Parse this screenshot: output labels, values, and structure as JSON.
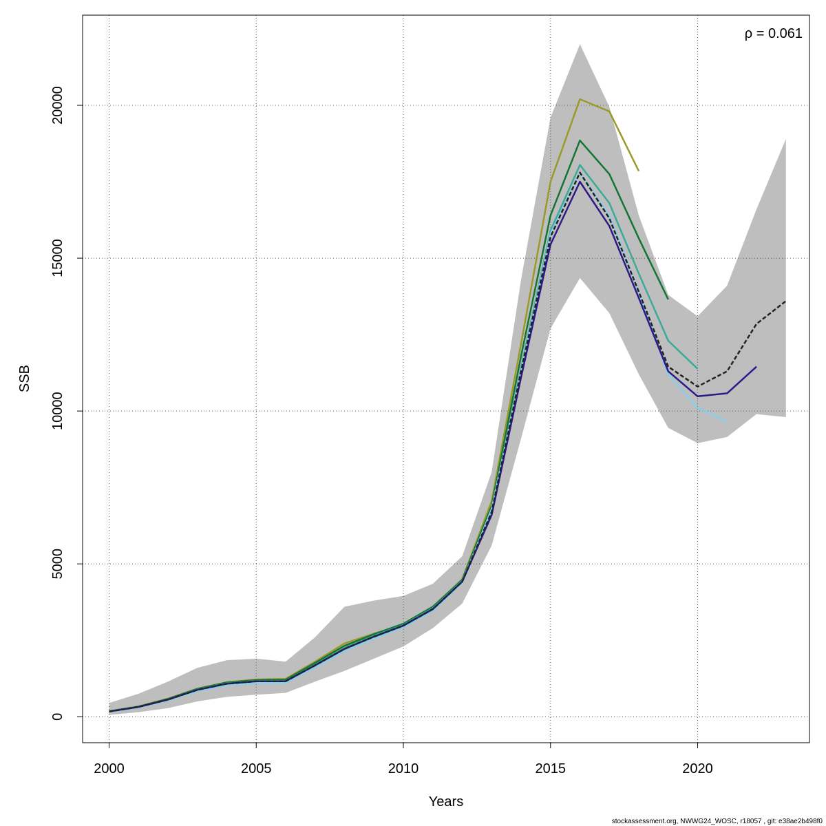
{
  "chart_data": {
    "type": "line",
    "xlabel": "Years",
    "ylabel": "SSB",
    "xlim": [
      1999.1,
      2023.8
    ],
    "ylim": [
      -850,
      22950
    ],
    "x_ticks": [
      2000,
      2005,
      2010,
      2015,
      2020
    ],
    "y_ticks": [
      0,
      5000,
      10000,
      15000,
      20000
    ],
    "grid": true,
    "annotation": "ρ = 0.061",
    "confidence_band": {
      "color": "#bebebe",
      "x": [
        2000,
        2001,
        2002,
        2003,
        2004,
        2005,
        2006,
        2007,
        2008,
        2009,
        2010,
        2011,
        2012,
        2013,
        2014,
        2015,
        2016,
        2017,
        2018,
        2019,
        2020,
        2021,
        2022,
        2023
      ],
      "lower": [
        60,
        150,
        280,
        500,
        650,
        720,
        780,
        1150,
        1500,
        1900,
        2300,
        2900,
        3700,
        5600,
        9100,
        12700,
        14350,
        13200,
        11200,
        9450,
        8950,
        9150,
        9900,
        9800
      ],
      "upper": [
        450,
        750,
        1150,
        1600,
        1850,
        1900,
        1800,
        2600,
        3600,
        3800,
        3950,
        4350,
        5250,
        8000,
        14300,
        19600,
        22000,
        19950,
        16400,
        13800,
        13100,
        14100,
        16600,
        18900
      ]
    },
    "series": [
      {
        "color": "#222222",
        "dashed": true,
        "x": [
          2000,
          2001,
          2002,
          2003,
          2004,
          2005,
          2006,
          2007,
          2008,
          2009,
          2010,
          2011,
          2012,
          2013,
          2014,
          2015,
          2016,
          2017,
          2018,
          2019,
          2020,
          2021,
          2022,
          2023
        ],
        "values": [
          170,
          320,
          560,
          880,
          1080,
          1160,
          1160,
          1680,
          2220,
          2620,
          2980,
          3520,
          4420,
          6700,
          11300,
          15700,
          17800,
          16300,
          13900,
          11450,
          10800,
          11300,
          12850,
          13600
        ]
      },
      {
        "color": "#2b1a88",
        "x": [
          2000,
          2001,
          2002,
          2003,
          2004,
          2005,
          2006,
          2007,
          2008,
          2009,
          2010,
          2011,
          2012,
          2013,
          2014,
          2015,
          2016,
          2017,
          2018,
          2019,
          2020,
          2021,
          2022
        ],
        "values": [
          170,
          320,
          560,
          880,
          1080,
          1160,
          1160,
          1680,
          2220,
          2620,
          2980,
          3520,
          4420,
          6600,
          11100,
          15450,
          17500,
          16050,
          13700,
          11300,
          10480,
          10580,
          11450
        ]
      },
      {
        "color": "#87ceeb",
        "x": [
          2000,
          2001,
          2002,
          2003,
          2004,
          2005,
          2006,
          2007,
          2008,
          2009,
          2010,
          2011,
          2012,
          2013,
          2014,
          2015,
          2016,
          2017,
          2018,
          2019,
          2020,
          2021
        ],
        "values": [
          150,
          300,
          530,
          840,
          1030,
          1100,
          1110,
          1620,
          2150,
          2560,
          2930,
          3470,
          4380,
          6800,
          11300,
          15800,
          17800,
          16400,
          13900,
          11200,
          10100,
          9650
        ]
      },
      {
        "color": "#3aaa9b",
        "x": [
          2000,
          2001,
          2002,
          2003,
          2004,
          2005,
          2006,
          2007,
          2008,
          2009,
          2010,
          2011,
          2012,
          2013,
          2014,
          2015,
          2016,
          2017,
          2018,
          2019,
          2020
        ],
        "values": [
          170,
          320,
          560,
          890,
          1090,
          1170,
          1170,
          1700,
          2250,
          2650,
          3000,
          3550,
          4450,
          6750,
          11400,
          15900,
          18050,
          16800,
          14500,
          12300,
          11380
        ]
      },
      {
        "color": "#137535",
        "x": [
          2000,
          2001,
          2002,
          2003,
          2004,
          2005,
          2006,
          2007,
          2008,
          2009,
          2010,
          2011,
          2012,
          2013,
          2014,
          2015,
          2016,
          2017,
          2018,
          2019
        ],
        "values": [
          180,
          330,
          580,
          910,
          1120,
          1200,
          1210,
          1760,
          2320,
          2700,
          3040,
          3600,
          4480,
          6900,
          11800,
          16400,
          18850,
          17750,
          15650,
          13650
        ]
      },
      {
        "color": "#9a9a2a",
        "x": [
          2000,
          2001,
          2002,
          2003,
          2004,
          2005,
          2006,
          2007,
          2008,
          2009,
          2010,
          2011,
          2012,
          2013,
          2014,
          2015,
          2016,
          2017,
          2018
        ],
        "values": [
          180,
          340,
          590,
          920,
          1130,
          1220,
          1240,
          1800,
          2400,
          2720,
          3000,
          3570,
          4500,
          7050,
          12200,
          17500,
          20200,
          19800,
          17850
        ]
      }
    ]
  },
  "footer": "stockassessment.org, NWWG24_WOSC, r18057 , git: e38ae2b498f0"
}
